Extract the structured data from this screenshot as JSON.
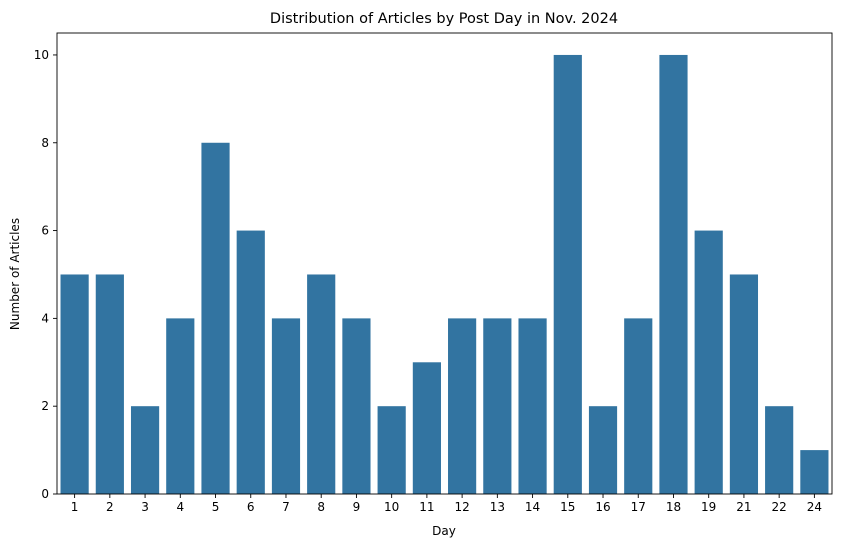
{
  "chart_data": {
    "type": "bar",
    "title": "Distribution of Articles by Post Day in Nov. 2024",
    "xlabel": "Day",
    "ylabel": "Number of Articles",
    "categories": [
      "1",
      "2",
      "3",
      "4",
      "5",
      "6",
      "7",
      "8",
      "9",
      "10",
      "11",
      "12",
      "13",
      "14",
      "15",
      "16",
      "17",
      "18",
      "19",
      "21",
      "22",
      "24"
    ],
    "values": [
      5,
      5,
      2,
      4,
      8,
      6,
      4,
      5,
      4,
      2,
      3,
      4,
      4,
      4,
      10,
      2,
      4,
      10,
      6,
      5,
      2,
      1
    ],
    "ylim": [
      0,
      10.5
    ],
    "yticks": [
      0,
      2,
      4,
      6,
      8,
      10
    ],
    "bar_color": "#3274a1",
    "grid": false,
    "legend": "none"
  }
}
